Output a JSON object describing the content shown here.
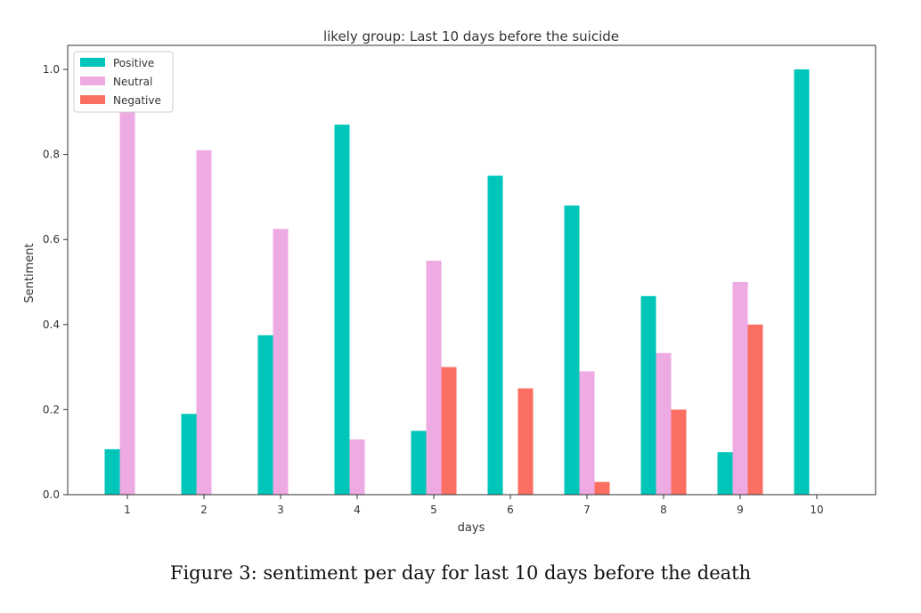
{
  "chart_data": {
    "type": "bar",
    "title": "likely group: Last 10 days before the suicide",
    "xlabel": "days",
    "ylabel": "Sentiment",
    "categories": [
      "1",
      "2",
      "3",
      "4",
      "5",
      "6",
      "7",
      "8",
      "9",
      "10"
    ],
    "ylim": [
      0,
      1.05
    ],
    "yticks": [
      "0.0",
      "0.2",
      "0.4",
      "0.6",
      "0.8",
      "1.0"
    ],
    "grid": false,
    "legend_position": "top-left",
    "series": [
      {
        "name": "Positive",
        "color": "#00c5b9",
        "values": [
          0.107,
          0.19,
          0.375,
          0.87,
          0.15,
          0.75,
          0.68,
          0.467,
          0.1,
          1.0
        ]
      },
      {
        "name": "Neutral",
        "color": "#eeaae3",
        "values": [
          0.9,
          0.81,
          0.625,
          0.13,
          0.55,
          0.0,
          0.29,
          0.333,
          0.5,
          0.0
        ]
      },
      {
        "name": "Negative",
        "color": "#fa6f61",
        "values": [
          0.0,
          0.0,
          0.0,
          0.0,
          0.3,
          0.25,
          0.03,
          0.2,
          0.4,
          0.0
        ]
      }
    ]
  },
  "caption": "Figure 3: sentiment per day for last 10 days before the death"
}
